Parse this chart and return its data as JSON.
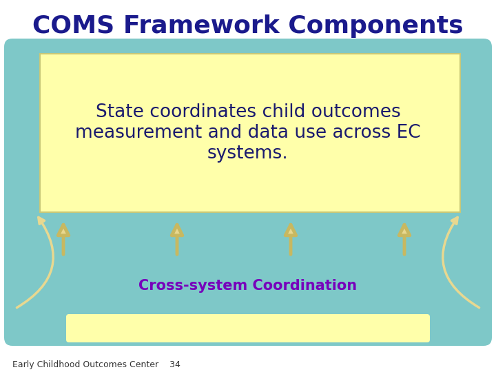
{
  "title": "COMS Framework Components",
  "title_color": "#1a1a8c",
  "title_fontsize": 26,
  "bg_color": "#ffffff",
  "teal_color": "#7ec8c8",
  "yellow_color": "#ffffaa",
  "arrow_color": "#e8d890",
  "arrow_edge_color": "#c8b860",
  "popup_text": "State coordinates child outcomes\nmeasurement and data use across EC\nsystems.",
  "popup_text_color": "#1a1a6e",
  "popup_fontsize": 19,
  "cross_system_text": "Cross-system Coordination",
  "cross_system_color": "#7700bb",
  "cross_system_fontsize": 15,
  "footer_text": "Early Childhood Outcomes Center    34",
  "footer_fontsize": 9,
  "dark_teal_color": "#6ab5b5"
}
